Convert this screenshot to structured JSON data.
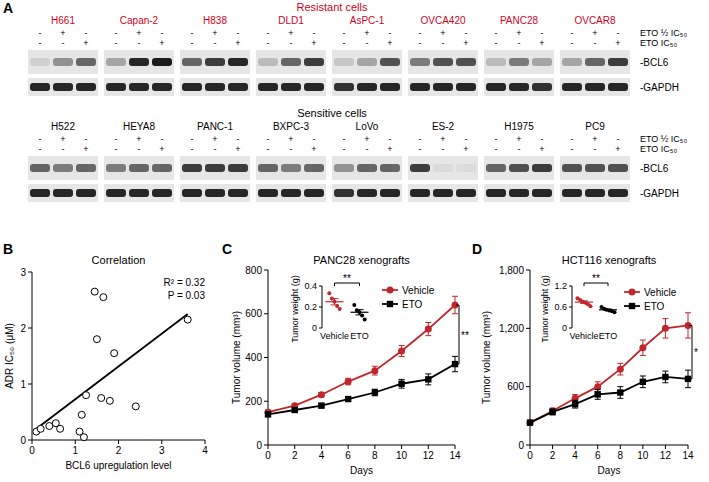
{
  "chart_data": [
    {
      "type": "blot",
      "label": "A",
      "treatments": [
        {
          "label": "ETO ½ IC₅₀",
          "signs": [
            "-",
            "+",
            "-"
          ]
        },
        {
          "label": "ETO IC₅₀",
          "signs": [
            "-",
            "-",
            "+"
          ]
        }
      ],
      "bands": [
        "-BCL6",
        "-GAPDH"
      ],
      "rows": [
        {
          "title": "Resistant cells",
          "color": "#d0021b",
          "groups": [
            {
              "name": "H661",
              "bcl6": [
                0.1,
                0.4,
                0.6
              ],
              "gapdh": [
                0.9,
                0.9,
                0.9
              ]
            },
            {
              "name": "Capan-2",
              "bcl6": [
                0.3,
                0.9,
                0.95
              ],
              "gapdh": [
                0.9,
                0.9,
                0.9
              ]
            },
            {
              "name": "H838",
              "bcl6": [
                0.6,
                0.8,
                0.9
              ],
              "gapdh": [
                0.9,
                0.9,
                0.9
              ]
            },
            {
              "name": "DLD1",
              "bcl6": [
                0.2,
                0.6,
                0.8
              ],
              "gapdh": [
                0.9,
                0.9,
                0.9
              ]
            },
            {
              "name": "AsPC-1",
              "bcl6": [
                0.15,
                0.3,
                0.7
              ],
              "gapdh": [
                0.85,
                0.9,
                0.9
              ]
            },
            {
              "name": "OVCA420",
              "bcl6": [
                0.5,
                0.7,
                0.7
              ],
              "gapdh": [
                0.9,
                0.9,
                0.9
              ]
            },
            {
              "name": "PANC28",
              "bcl6": [
                0.2,
                0.5,
                0.3
              ],
              "gapdh": [
                0.9,
                0.9,
                0.85
              ]
            },
            {
              "name": "OVCAR8",
              "bcl6": [
                0.3,
                0.6,
                0.8
              ],
              "gapdh": [
                0.9,
                0.9,
                0.9
              ]
            }
          ]
        },
        {
          "title": "Sensitive cells",
          "color": "#000000",
          "groups": [
            {
              "name": "H522",
              "bcl6": [
                0.6,
                0.5,
                0.6
              ],
              "gapdh": [
                0.9,
                0.9,
                0.9
              ]
            },
            {
              "name": "HEYA8",
              "bcl6": [
                0.5,
                0.6,
                0.6
              ],
              "gapdh": [
                0.9,
                0.9,
                0.9
              ]
            },
            {
              "name": "PANC-1",
              "bcl6": [
                0.8,
                0.8,
                0.8
              ],
              "gapdh": [
                0.9,
                0.9,
                0.9
              ]
            },
            {
              "name": "BXPC-3",
              "bcl6": [
                0.6,
                0.5,
                0.6
              ],
              "gapdh": [
                0.9,
                0.9,
                0.9
              ]
            },
            {
              "name": "LoVo",
              "bcl6": [
                0.4,
                0.6,
                0.6
              ],
              "gapdh": [
                0.85,
                0.9,
                0.9
              ]
            },
            {
              "name": "ES-2",
              "bcl6": [
                0.8,
                0.05,
                0.05
              ],
              "gapdh": [
                0.9,
                0.9,
                0.9
              ]
            },
            {
              "name": "H1975",
              "bcl6": [
                0.6,
                0.7,
                0.8
              ],
              "gapdh": [
                0.9,
                0.9,
                0.9
              ]
            },
            {
              "name": "PC9",
              "bcl6": [
                0.7,
                0.7,
                0.7
              ],
              "gapdh": [
                0.9,
                0.9,
                0.9
              ]
            }
          ]
        }
      ]
    },
    {
      "type": "scatter",
      "label": "B",
      "title": "Correlation",
      "x_label": "BCL6 upregulation level",
      "y_label": "ADR IC₅₀ (μM)",
      "annotations": [
        "R² = 0.32",
        "P = 0.03"
      ],
      "x": [
        0.1,
        0.2,
        0.4,
        0.55,
        0.65,
        1.1,
        1.2,
        1.15,
        1.25,
        1.45,
        1.5,
        1.65,
        1.6,
        1.8,
        1.9,
        2.4,
        3.6
      ],
      "y": [
        0.15,
        0.2,
        0.25,
        0.3,
        0.2,
        0.15,
        0.05,
        0.45,
        0.8,
        2.65,
        1.8,
        2.55,
        0.75,
        0.7,
        1.55,
        0.6,
        2.15
      ],
      "fit": {
        "x": [
          0.1,
          3.6
        ],
        "y": [
          0.2,
          2.25
        ]
      },
      "xlim": [
        0,
        4
      ],
      "xticks": [
        0,
        1,
        2,
        3,
        4
      ],
      "ylim": [
        0,
        3
      ],
      "yticks": [
        0,
        1,
        2,
        3
      ],
      "marker": "open-circle"
    },
    {
      "type": "line",
      "label": "C",
      "title": "PANC28 xenografts",
      "x_label": "Days",
      "y_label": "Tumor volume (mm³)",
      "x": [
        0,
        2,
        4,
        6,
        8,
        10,
        12,
        14
      ],
      "series": [
        {
          "name": "Vehicle",
          "color": "#c0262d",
          "marker": "circle",
          "values": [
            150,
            180,
            230,
            290,
            340,
            430,
            530,
            640
          ],
          "errors": [
            10,
            10,
            10,
            15,
            20,
            25,
            30,
            40
          ]
        },
        {
          "name": "ETO",
          "color": "#000000",
          "marker": "square",
          "values": [
            140,
            160,
            180,
            210,
            240,
            280,
            300,
            370
          ],
          "errors": [
            10,
            10,
            10,
            10,
            15,
            20,
            25,
            35
          ]
        }
      ],
      "xlim": [
        0,
        14
      ],
      "xticks": [
        0,
        2,
        4,
        6,
        8,
        10,
        12,
        14
      ],
      "ylim": [
        0,
        800
      ],
      "yticks": [
        0,
        200,
        400,
        600,
        800
      ],
      "legend": "right",
      "annotation": "**",
      "inset": {
        "type": "dot",
        "y_label": "Tumor weight (g)",
        "categories": [
          "Vehicle",
          "ETO"
        ],
        "colors": [
          "#c0262d",
          "#000000"
        ],
        "points": [
          [
            0.33,
            0.28,
            0.25,
            0.21,
            0.18
          ],
          [
            0.22,
            0.17,
            0.15,
            0.12,
            0.08
          ]
        ],
        "means": [
          0.25,
          0.15
        ],
        "sem": [
          0.03,
          0.025
        ],
        "ylim": [
          0,
          0.4
        ],
        "yticks": [
          0,
          0.2,
          0.4
        ],
        "annotation": "**"
      }
    },
    {
      "type": "line",
      "label": "D",
      "title": "HCT116 xenografts",
      "x_label": "Days",
      "y_label": "Tumor volume (mm³)",
      "x": [
        0,
        2,
        4,
        6,
        8,
        10,
        12,
        14
      ],
      "series": [
        {
          "name": "Vehicle",
          "color": "#c0262d",
          "marker": "circle",
          "values": [
            230,
            350,
            480,
            600,
            780,
            1000,
            1200,
            1230
          ],
          "errors": [
            20,
            30,
            40,
            50,
            60,
            80,
            100,
            130
          ]
        },
        {
          "name": "ETO",
          "color": "#000000",
          "marker": "square",
          "values": [
            230,
            340,
            420,
            520,
            540,
            650,
            700,
            680
          ],
          "errors": [
            20,
            30,
            40,
            50,
            60,
            60,
            60,
            90
          ]
        }
      ],
      "xlim": [
        0,
        14
      ],
      "xticks": [
        0,
        2,
        4,
        6,
        8,
        10,
        12,
        14
      ],
      "ylim": [
        0,
        1800
      ],
      "yticks": [
        0,
        600,
        {
          "value": 1200,
          "label": "1,200"
        },
        {
          "value": 1800,
          "label": "1,800"
        }
      ],
      "legend": "right",
      "annotation": "*",
      "inset": {
        "type": "dot",
        "y_label": "Tumor weight (g)",
        "categories": [
          "Vehicle",
          "ETO"
        ],
        "colors": [
          "#c0262d",
          "#000000"
        ],
        "points": [
          [
            0.85,
            0.8,
            0.75,
            0.72,
            0.68,
            0.62
          ],
          [
            0.6,
            0.55,
            0.52,
            0.5,
            0.48,
            0.45
          ]
        ],
        "means": [
          0.74,
          0.52
        ],
        "sem": [
          0.035,
          0.022
        ],
        "ylim": [
          0,
          1.2
        ],
        "yticks": [
          0,
          0.6,
          1.2
        ],
        "annotation": "**"
      }
    }
  ]
}
